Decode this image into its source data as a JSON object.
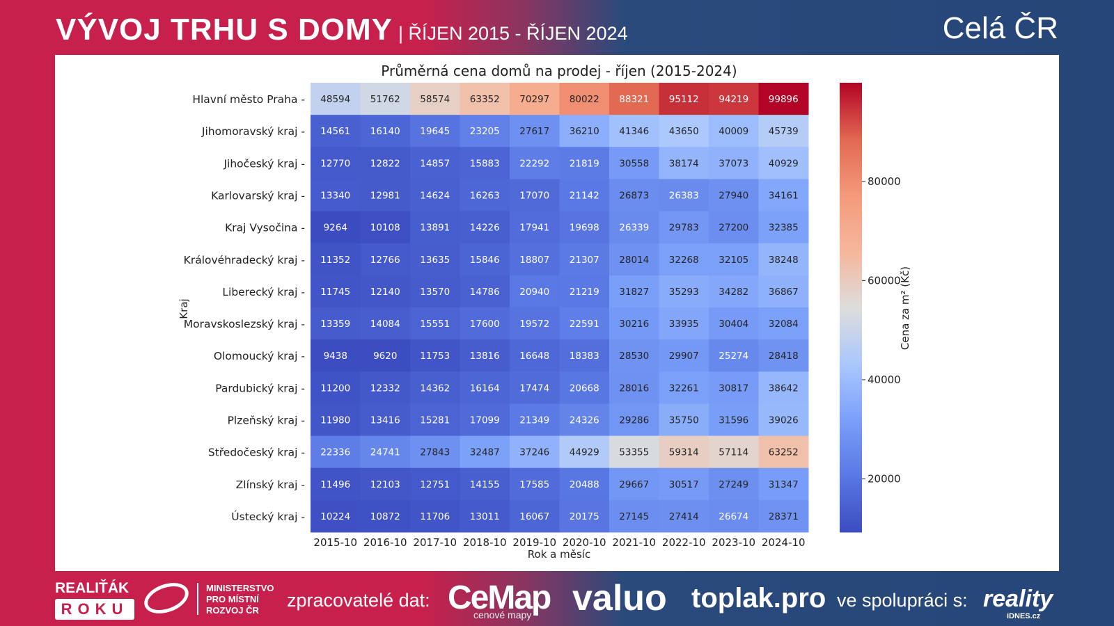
{
  "header": {
    "title": "VÝVOJ TRHU S DOMY",
    "subtitle": "| ŘÍJEN 2015 - ŘÍJEN 2024",
    "region": "Celá ČR"
  },
  "chart_data": {
    "type": "heatmap",
    "title": "Průměrná cena domů na prodej - říjen (2015-2024)",
    "xlabel": "Rok a měsíc",
    "ylabel": "Kraj",
    "colorbar_label": "Cena za m² (Kč)",
    "colorbar_ticks": [
      "20000",
      "40000",
      "60000",
      "80000"
    ],
    "colorbar_tick_values": [
      20000,
      40000,
      60000,
      80000
    ],
    "vmin": 9264,
    "vmax": 99896,
    "colormap": "coolwarm",
    "x": [
      "2015-10",
      "2016-10",
      "2017-10",
      "2018-10",
      "2019-10",
      "2020-10",
      "2021-10",
      "2022-10",
      "2023-10",
      "2024-10"
    ],
    "y": [
      "Hlavní město Praha",
      "Jihomoravský kraj",
      "Jihočeský kraj",
      "Karlovarský kraj",
      "Kraj Vysočina",
      "Královéhradecký kraj",
      "Liberecký kraj",
      "Moravskoslezský kraj",
      "Olomoucký kraj",
      "Pardubický kraj",
      "Plzeňský kraj",
      "Středočeský kraj",
      "Zlínský kraj",
      "Ústecký kraj"
    ],
    "values": [
      [
        48594,
        51762,
        58574,
        63352,
        70297,
        80022,
        88321,
        95112,
        94219,
        99896
      ],
      [
        14561,
        16140,
        19645,
        23205,
        27617,
        36210,
        41346,
        43650,
        40009,
        45739
      ],
      [
        12770,
        12822,
        14857,
        15883,
        22292,
        21819,
        30558,
        38174,
        37073,
        40929
      ],
      [
        13340,
        12981,
        14624,
        16263,
        17070,
        21142,
        26873,
        26383,
        27940,
        34161
      ],
      [
        9264,
        10108,
        13891,
        14226,
        17941,
        19698,
        26339,
        29783,
        27200,
        32385
      ],
      [
        11352,
        12766,
        13635,
        15846,
        18807,
        21307,
        28014,
        32268,
        32105,
        38248
      ],
      [
        11745,
        12140,
        13570,
        14786,
        20940,
        21219,
        31827,
        35293,
        34282,
        36867
      ],
      [
        13359,
        14084,
        15551,
        17600,
        19572,
        22591,
        30216,
        33935,
        30404,
        32084
      ],
      [
        9438,
        9620,
        11753,
        13816,
        16648,
        18383,
        28530,
        29907,
        25274,
        28418
      ],
      [
        11200,
        12332,
        14362,
        16164,
        17474,
        20668,
        28016,
        32261,
        30817,
        38642
      ],
      [
        11980,
        13416,
        15281,
        17099,
        21349,
        24326,
        29286,
        35750,
        31596,
        39026
      ],
      [
        22336,
        24741,
        27843,
        32487,
        37246,
        44929,
        53355,
        59314,
        57114,
        63252
      ],
      [
        11496,
        12103,
        12751,
        14155,
        17585,
        20488,
        29667,
        30517,
        27249,
        31347
      ],
      [
        10224,
        10872,
        11706,
        13011,
        16067,
        20175,
        27145,
        27414,
        26674,
        28371
      ]
    ]
  },
  "footer": {
    "award_line1": "REALIŤÁK",
    "award_line2": "ROKU",
    "ministry": [
      "MINISTERSTVO",
      "PRO MÍSTNÍ",
      "ROZVOJ ČR"
    ],
    "processors_label": "zpracovatelé dat:",
    "cemap": "CeMap",
    "cemap_sub": "cenové mapy",
    "valuo": "valuo",
    "toplak": "toplak.pro",
    "cooperation_label": "ve spolupráci s:",
    "reality": "reality",
    "reality_sub": "iDNES.cz"
  }
}
